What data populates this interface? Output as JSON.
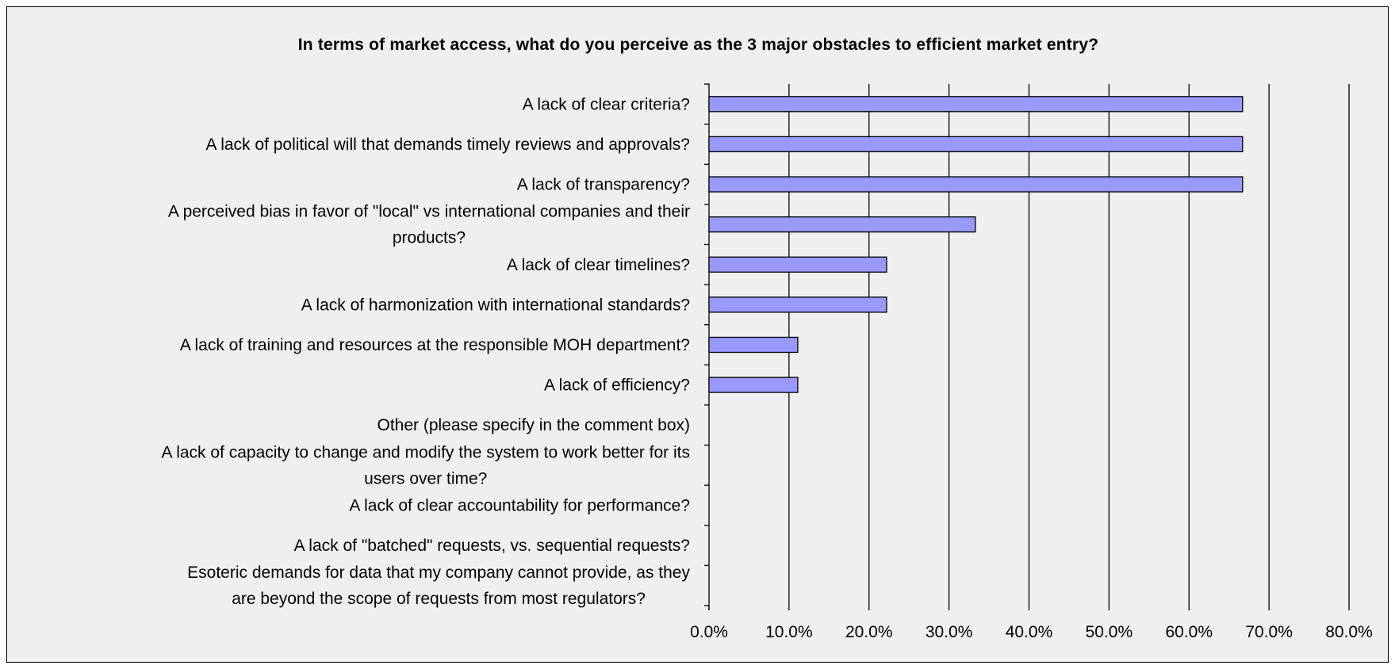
{
  "chart_data": {
    "type": "bar",
    "orientation": "horizontal",
    "title": "In terms of market access, what do you perceive as the 3 major obstacles to efficient market entry?",
    "categories": [
      [
        "A lack of clear criteria?"
      ],
      [
        "A lack of political will that demands timely reviews and approvals?"
      ],
      [
        "A lack of transparency?"
      ],
      [
        "A perceived bias in favor of \"local\" vs international companies and their",
        "products?"
      ],
      [
        "A lack of clear timelines?"
      ],
      [
        "A lack of harmonization with international standards?"
      ],
      [
        "A lack of training and resources at the responsible MOH department?"
      ],
      [
        "A lack of efficiency?"
      ],
      [
        "Other (please specify in the comment box)"
      ],
      [
        "A lack of capacity to change and modify the system to work better for its",
        "users over time?"
      ],
      [
        "A lack of clear accountability for performance?"
      ],
      [
        "A lack of \"batched\" requests, vs. sequential requests?"
      ],
      [
        "Esoteric demands for data that my company cannot provide, as they",
        "are beyond the scope of requests from most regulators?"
      ]
    ],
    "values": [
      66.7,
      66.7,
      66.7,
      33.3,
      22.2,
      22.2,
      11.1,
      11.1,
      0,
      0,
      0,
      0,
      0
    ],
    "xlim": [
      0,
      80
    ],
    "x_ticks": [
      "0.0%",
      "10.0%",
      "20.0%",
      "30.0%",
      "40.0%",
      "50.0%",
      "60.0%",
      "70.0%",
      "80.0%"
    ],
    "grid": "vertical",
    "legend": "none",
    "colors": {
      "bar_fill": "#9999ff",
      "bar_stroke": "#000000",
      "background": "#efefef",
      "gridline": "#000000"
    }
  }
}
